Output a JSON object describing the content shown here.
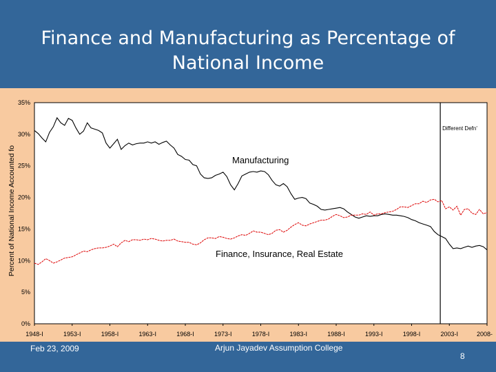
{
  "slide": {
    "title_line1": "Finance and Manufacturing as Percentage of",
    "title_line2": "National Income",
    "footer_date": "Feb 23, 2009",
    "footer_author": "Arjun Jayadev Assumption College",
    "page_number": "8",
    "background_color": "#336699",
    "chart_background_color": "#f8caa0"
  },
  "chart_data": {
    "type": "line",
    "ylabel": "Percent of National Income Accounted fo",
    "ylim": [
      0,
      35
    ],
    "y_ticks": [
      0,
      5,
      10,
      15,
      20,
      25,
      30,
      35
    ],
    "y_tick_labels": [
      "0%",
      "5%",
      "10%",
      "15%",
      "20%",
      "25%",
      "30%",
      "35%"
    ],
    "xlim": [
      1948,
      2008
    ],
    "x_ticks": [
      1948,
      1953,
      1958,
      1963,
      1968,
      1973,
      1978,
      1983,
      1988,
      1993,
      1998,
      2003,
      2008
    ],
    "x_tick_labels": [
      "1948-I",
      "1953-I",
      "1958-I",
      "1963-I",
      "1968-I",
      "1973-I",
      "1978-I",
      "1983-I",
      "1988-I",
      "1993-I",
      "1998-I",
      "2003-I",
      "2008-"
    ],
    "annotation": {
      "text": "Different Defn'",
      "x": 2001.8
    },
    "series": [
      {
        "name": "Manufacturing",
        "color": "#000000",
        "x": [
          1948.0,
          1948.5,
          1949.0,
          1949.5,
          1950.0,
          1950.5,
          1951.0,
          1951.5,
          1952.0,
          1952.5,
          1953.0,
          1953.5,
          1954.0,
          1954.5,
          1955.0,
          1955.5,
          1956.0,
          1956.5,
          1957.0,
          1957.5,
          1958.0,
          1958.5,
          1959.0,
          1959.5,
          1960.0,
          1960.5,
          1961.0,
          1961.5,
          1962.0,
          1962.5,
          1963.0,
          1963.5,
          1964.0,
          1964.5,
          1965.0,
          1965.5,
          1966.0,
          1966.5,
          1967.0,
          1967.5,
          1968.0,
          1968.5,
          1969.0,
          1969.5,
          1970.0,
          1970.5,
          1971.0,
          1971.5,
          1972.0,
          1972.5,
          1973.0,
          1973.5,
          1974.0,
          1974.5,
          1975.0,
          1975.5,
          1976.0,
          1976.5,
          1977.0,
          1977.5,
          1978.0,
          1978.5,
          1979.0,
          1979.5,
          1980.0,
          1980.5,
          1981.0,
          1981.5,
          1982.0,
          1982.5,
          1983.0,
          1983.5,
          1984.0,
          1984.5,
          1985.0,
          1985.5,
          1986.0,
          1986.5,
          1987.0,
          1987.5,
          1988.0,
          1988.5,
          1989.0,
          1989.5,
          1990.0,
          1990.5,
          1991.0,
          1991.5,
          1992.0,
          1992.5,
          1993.0,
          1993.5,
          1994.0,
          1994.5,
          1995.0,
          1995.5,
          1996.0,
          1996.5,
          1997.0,
          1997.5,
          1998.0,
          1998.5,
          1999.0,
          1999.5,
          2000.0,
          2000.5,
          2001.0,
          2001.5,
          2002.0,
          2002.5,
          2003.0,
          2003.5,
          2004.0,
          2004.5,
          2005.0,
          2005.5,
          2006.0,
          2006.5,
          2007.0,
          2007.5,
          2008.0
        ],
        "values": [
          30.6,
          30.1,
          29.4,
          28.8,
          30.3,
          31.2,
          32.6,
          31.8,
          31.4,
          32.5,
          32.2,
          31.0,
          30.0,
          30.5,
          31.8,
          31.0,
          30.8,
          30.6,
          30.2,
          28.6,
          27.8,
          28.5,
          29.2,
          27.6,
          28.2,
          28.6,
          28.3,
          28.5,
          28.6,
          28.6,
          28.8,
          28.6,
          28.8,
          28.4,
          28.7,
          28.9,
          28.3,
          27.8,
          26.8,
          26.5,
          26.0,
          25.9,
          25.2,
          25.0,
          23.7,
          23.1,
          23.0,
          23.1,
          23.5,
          23.7,
          24.0,
          23.3,
          22.0,
          21.2,
          22.2,
          23.4,
          23.7,
          24.0,
          24.1,
          24.0,
          24.2,
          24.1,
          23.6,
          22.7,
          22.0,
          21.8,
          22.2,
          21.7,
          20.6,
          19.7,
          19.9,
          20.0,
          19.8,
          19.1,
          18.9,
          18.6,
          18.1,
          18.0,
          18.1,
          18.2,
          18.3,
          18.4,
          18.2,
          17.7,
          17.3,
          16.9,
          16.7,
          16.9,
          17.1,
          17.0,
          17.1,
          17.1,
          17.3,
          17.4,
          17.3,
          17.2,
          17.2,
          17.1,
          17.0,
          16.8,
          16.5,
          16.3,
          16.0,
          15.8,
          15.6,
          15.4,
          14.6,
          14.1,
          13.8,
          13.5,
          12.6,
          11.9,
          12.0,
          11.9,
          12.1,
          12.3,
          12.1,
          12.3,
          12.4,
          12.2,
          11.7
        ]
      },
      {
        "name": "Finance, Insurance, Real Estate",
        "color": "#dd0000",
        "x": [
          1948.0,
          1948.5,
          1949.0,
          1949.5,
          1950.0,
          1950.5,
          1951.0,
          1951.5,
          1952.0,
          1952.5,
          1953.0,
          1953.5,
          1954.0,
          1954.5,
          1955.0,
          1955.5,
          1956.0,
          1956.5,
          1957.0,
          1957.5,
          1958.0,
          1958.5,
          1959.0,
          1959.5,
          1960.0,
          1960.5,
          1961.0,
          1961.5,
          1962.0,
          1962.5,
          1963.0,
          1963.5,
          1964.0,
          1964.5,
          1965.0,
          1965.5,
          1966.0,
          1966.5,
          1967.0,
          1967.5,
          1968.0,
          1968.5,
          1969.0,
          1969.5,
          1970.0,
          1970.5,
          1971.0,
          1971.5,
          1972.0,
          1972.5,
          1973.0,
          1973.5,
          1974.0,
          1974.5,
          1975.0,
          1975.5,
          1976.0,
          1976.5,
          1977.0,
          1977.5,
          1978.0,
          1978.5,
          1979.0,
          1979.5,
          1980.0,
          1980.5,
          1981.0,
          1981.5,
          1982.0,
          1982.5,
          1983.0,
          1983.5,
          1984.0,
          1984.5,
          1985.0,
          1985.5,
          1986.0,
          1986.5,
          1987.0,
          1987.5,
          1988.0,
          1988.5,
          1989.0,
          1989.5,
          1990.0,
          1990.5,
          1991.0,
          1991.5,
          1992.0,
          1992.5,
          1993.0,
          1993.5,
          1994.0,
          1994.5,
          1995.0,
          1995.5,
          1996.0,
          1996.5,
          1997.0,
          1997.5,
          1998.0,
          1998.5,
          1999.0,
          1999.5,
          2000.0,
          2000.5,
          2001.0,
          2001.5,
          2002.0,
          2002.5,
          2003.0,
          2003.5,
          2004.0,
          2004.5,
          2005.0,
          2005.5,
          2006.0,
          2006.5,
          2007.0,
          2007.5,
          2008.0
        ],
        "values": [
          9.6,
          9.4,
          9.8,
          10.3,
          10.0,
          9.6,
          9.8,
          10.1,
          10.4,
          10.5,
          10.6,
          10.9,
          11.2,
          11.5,
          11.4,
          11.7,
          11.9,
          12.0,
          12.0,
          12.1,
          12.3,
          12.6,
          12.2,
          12.8,
          13.2,
          13.0,
          13.3,
          13.3,
          13.2,
          13.4,
          13.3,
          13.5,
          13.4,
          13.2,
          13.1,
          13.2,
          13.2,
          13.4,
          13.1,
          13.0,
          12.9,
          12.9,
          12.6,
          12.5,
          12.8,
          13.3,
          13.6,
          13.6,
          13.5,
          13.8,
          13.7,
          13.5,
          13.4,
          13.6,
          13.9,
          14.1,
          14.0,
          14.3,
          14.7,
          14.5,
          14.5,
          14.3,
          14.1,
          14.3,
          14.8,
          14.9,
          14.5,
          14.8,
          15.3,
          15.7,
          16.0,
          15.6,
          15.5,
          15.8,
          16.0,
          16.2,
          16.4,
          16.4,
          16.6,
          17.0,
          17.3,
          17.1,
          16.8,
          16.9,
          17.2,
          17.2,
          17.2,
          17.4,
          17.3,
          17.7,
          17.2,
          17.4,
          17.4,
          17.6,
          17.7,
          17.8,
          18.1,
          18.5,
          18.5,
          18.4,
          18.7,
          19.0,
          19.0,
          19.4,
          19.2,
          19.6,
          19.7,
          19.3,
          19.5,
          18.2,
          18.5,
          18.0,
          18.6,
          17.2,
          18.1,
          18.2,
          17.5,
          17.3,
          18.1,
          17.4,
          17.6
        ]
      }
    ],
    "grid": false,
    "legend": "none"
  }
}
